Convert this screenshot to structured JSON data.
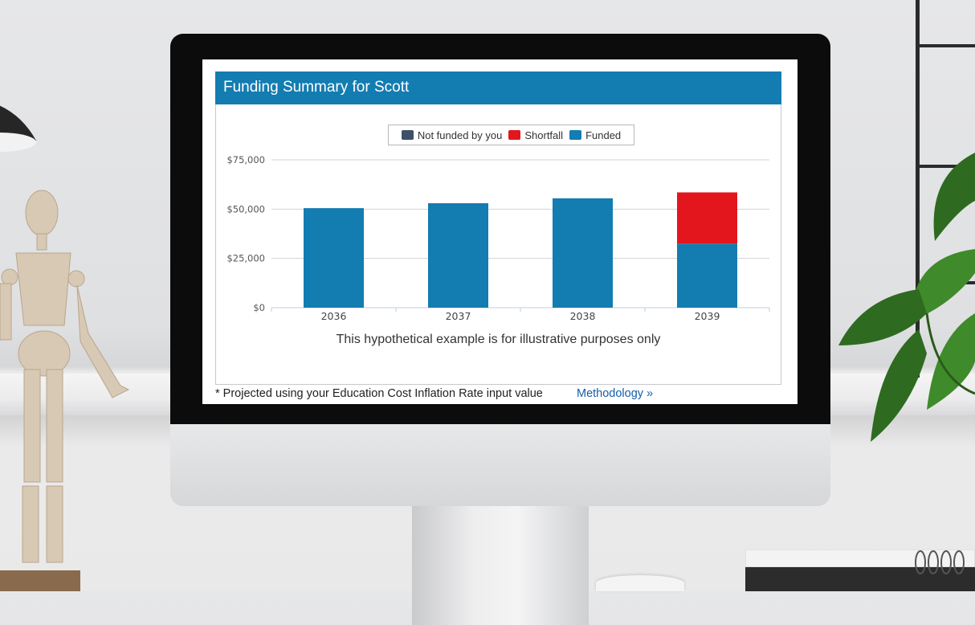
{
  "screen": {
    "title": "Funding Summary for Scott",
    "subtitle": "This hypothetical example is for illustrative purposes only",
    "footnote": "* Projected using your Education Cost Inflation Rate input value",
    "methodology_link": "Methodology",
    "methodology_arrow": "»"
  },
  "colors": {
    "header": "#137cb1",
    "not_funded": "#3e5068",
    "shortfall": "#e3161d",
    "funded": "#137cb1"
  },
  "chart_data": {
    "type": "bar",
    "stacked": true,
    "categories": [
      "2036",
      "2037",
      "2038",
      "2039"
    ],
    "series": [
      {
        "name": "Not funded by you",
        "color": "#3e5068",
        "values": [
          0,
          0,
          0,
          0
        ]
      },
      {
        "name": "Funded",
        "color": "#137cb1",
        "values": [
          50500,
          53000,
          55500,
          32500
        ]
      },
      {
        "name": "Shortfall",
        "color": "#e3161d",
        "values": [
          0,
          0,
          0,
          26000
        ]
      }
    ],
    "legend": [
      "Not funded by you",
      "Shortfall",
      "Funded"
    ],
    "legend_position": "top-center",
    "y_ticks": [
      "$0",
      "$25,000",
      "$50,000",
      "$75,000"
    ],
    "y_tick_values": [
      0,
      25000,
      50000,
      75000
    ],
    "ylim": [
      0,
      75000
    ],
    "grid": true
  }
}
